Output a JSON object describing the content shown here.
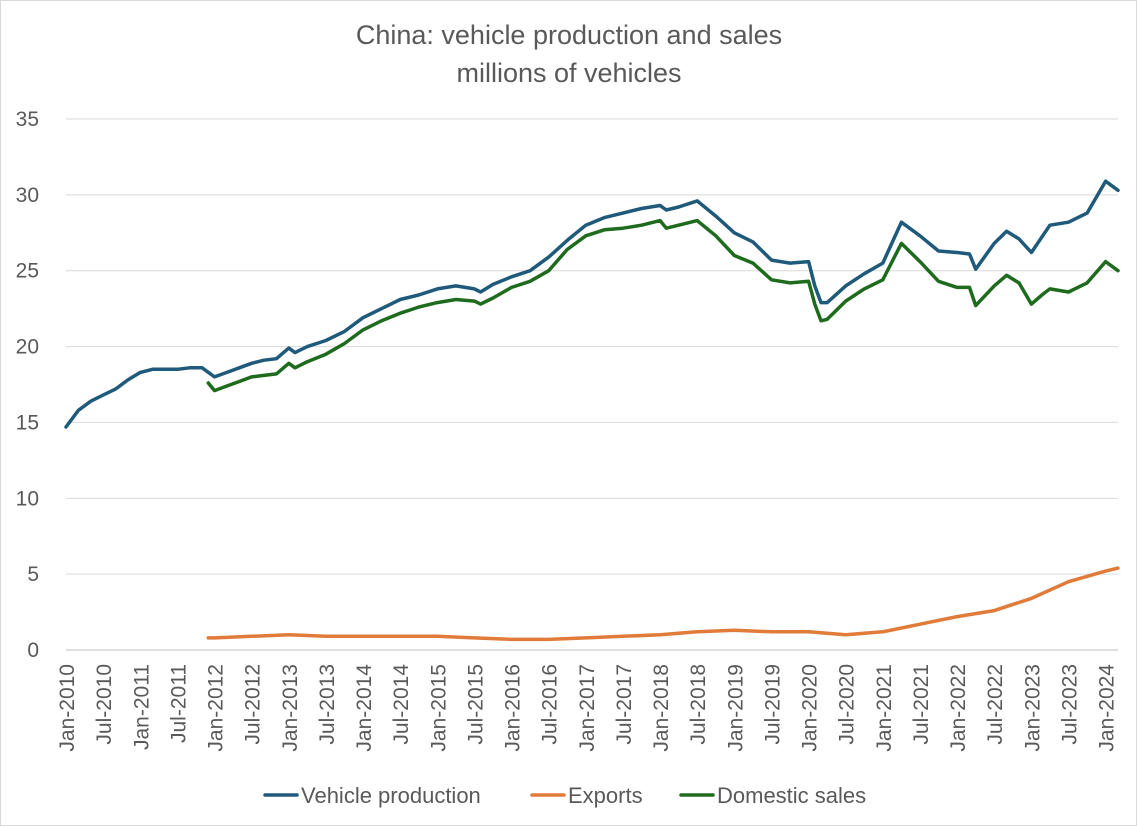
{
  "chart_data": {
    "type": "line",
    "title": "China: vehicle production and sales",
    "subtitle": "millions of vehicles",
    "xlabel": "",
    "ylabel": "",
    "ylim": [
      0,
      35
    ],
    "yticks": [
      0,
      5,
      10,
      15,
      20,
      25,
      30,
      35
    ],
    "x_range": [
      "Jan-2010",
      "Mar-2024"
    ],
    "xtick_labels": [
      "Jan-2010",
      "Jul-2010",
      "Jan-2011",
      "Jul-2011",
      "Jan-2012",
      "Jul-2012",
      "Jan-2013",
      "Jul-2013",
      "Jan-2014",
      "Jul-2014",
      "Jan-2015",
      "Jul-2015",
      "Jan-2016",
      "Jul-2016",
      "Jan-2017",
      "Jul-2017",
      "Jan-2018",
      "Jul-2018",
      "Jan-2019",
      "Jul-2019",
      "Jan-2020",
      "Jul-2020",
      "Jan-2021",
      "Jul-2021",
      "Jan-2022",
      "Jul-2022",
      "Jan-2023",
      "Jul-2023",
      "Jan-2024"
    ],
    "grid": "horizontal",
    "legend_position": "bottom",
    "series": [
      {
        "name": "Vehicle production",
        "color": "#1f5a7a",
        "points": [
          [
            "Jan-2010",
            14.7
          ],
          [
            "Mar-2010",
            15.8
          ],
          [
            "May-2010",
            16.4
          ],
          [
            "Jul-2010",
            16.8
          ],
          [
            "Sep-2010",
            17.2
          ],
          [
            "Nov-2010",
            17.8
          ],
          [
            "Jan-2011",
            18.3
          ],
          [
            "Mar-2011",
            18.5
          ],
          [
            "May-2011",
            18.5
          ],
          [
            "Jul-2011",
            18.5
          ],
          [
            "Sep-2011",
            18.6
          ],
          [
            "Nov-2011",
            18.6
          ],
          [
            "Jan-2012",
            18.0
          ],
          [
            "Mar-2012",
            18.3
          ],
          [
            "May-2012",
            18.6
          ],
          [
            "Jul-2012",
            18.9
          ],
          [
            "Sep-2012",
            19.1
          ],
          [
            "Nov-2012",
            19.2
          ],
          [
            "Jan-2013",
            19.9
          ],
          [
            "Feb-2013",
            19.6
          ],
          [
            "Apr-2013",
            20.0
          ],
          [
            "Jul-2013",
            20.4
          ],
          [
            "Oct-2013",
            21.0
          ],
          [
            "Jan-2014",
            21.9
          ],
          [
            "Apr-2014",
            22.5
          ],
          [
            "Jul-2014",
            23.1
          ],
          [
            "Oct-2014",
            23.4
          ],
          [
            "Jan-2015",
            23.8
          ],
          [
            "Apr-2015",
            24.0
          ],
          [
            "Jul-2015",
            23.8
          ],
          [
            "Aug-2015",
            23.6
          ],
          [
            "Oct-2015",
            24.1
          ],
          [
            "Jan-2016",
            24.6
          ],
          [
            "Apr-2016",
            25.0
          ],
          [
            "Jul-2016",
            25.9
          ],
          [
            "Oct-2016",
            27.0
          ],
          [
            "Jan-2017",
            28.0
          ],
          [
            "Apr-2017",
            28.5
          ],
          [
            "Jul-2017",
            28.8
          ],
          [
            "Oct-2017",
            29.1
          ],
          [
            "Jan-2018",
            29.3
          ],
          [
            "Feb-2018",
            29.0
          ],
          [
            "Apr-2018",
            29.2
          ],
          [
            "Jul-2018",
            29.6
          ],
          [
            "Oct-2018",
            28.6
          ],
          [
            "Jan-2019",
            27.5
          ],
          [
            "Apr-2019",
            26.9
          ],
          [
            "Jul-2019",
            25.7
          ],
          [
            "Oct-2019",
            25.5
          ],
          [
            "Jan-2020",
            25.6
          ],
          [
            "Feb-2020",
            24.0
          ],
          [
            "Mar-2020",
            22.9
          ],
          [
            "Apr-2020",
            22.9
          ],
          [
            "Jul-2020",
            24.0
          ],
          [
            "Oct-2020",
            24.8
          ],
          [
            "Jan-2021",
            25.5
          ],
          [
            "Apr-2021",
            28.2
          ],
          [
            "Jul-2021",
            27.3
          ],
          [
            "Oct-2021",
            26.3
          ],
          [
            "Jan-2022",
            26.2
          ],
          [
            "Mar-2022",
            26.1
          ],
          [
            "Apr-2022",
            25.1
          ],
          [
            "Jul-2022",
            26.8
          ],
          [
            "Sep-2022",
            27.6
          ],
          [
            "Nov-2022",
            27.1
          ],
          [
            "Jan-2023",
            26.2
          ],
          [
            "Mar-2023",
            27.4
          ],
          [
            "Apr-2023",
            28.0
          ],
          [
            "Jul-2023",
            28.2
          ],
          [
            "Oct-2023",
            28.8
          ],
          [
            "Jan-2024",
            30.9
          ],
          [
            "Mar-2024",
            30.3
          ]
        ]
      },
      {
        "name": "Exports",
        "color": "#e07b39",
        "points": [
          [
            "Dec-2011",
            0.8
          ],
          [
            "Jan-2012",
            0.8
          ],
          [
            "Jul-2012",
            0.9
          ],
          [
            "Jan-2013",
            1.0
          ],
          [
            "Jul-2013",
            0.9
          ],
          [
            "Jan-2014",
            0.9
          ],
          [
            "Jul-2014",
            0.9
          ],
          [
            "Jan-2015",
            0.9
          ],
          [
            "Jul-2015",
            0.8
          ],
          [
            "Jan-2016",
            0.7
          ],
          [
            "Jul-2016",
            0.7
          ],
          [
            "Jan-2017",
            0.8
          ],
          [
            "Jul-2017",
            0.9
          ],
          [
            "Jan-2018",
            1.0
          ],
          [
            "Jul-2018",
            1.2
          ],
          [
            "Jan-2019",
            1.3
          ],
          [
            "Jul-2019",
            1.2
          ],
          [
            "Jan-2020",
            1.2
          ],
          [
            "Jul-2020",
            1.0
          ],
          [
            "Jan-2021",
            1.2
          ],
          [
            "Jul-2021",
            1.7
          ],
          [
            "Jan-2022",
            2.2
          ],
          [
            "Jul-2022",
            2.6
          ],
          [
            "Jan-2023",
            3.4
          ],
          [
            "Jul-2023",
            4.5
          ],
          [
            "Jan-2024",
            5.2
          ],
          [
            "Mar-2024",
            5.4
          ]
        ]
      },
      {
        "name": "Domestic sales",
        "color": "#1e6b1e",
        "points": [
          [
            "Dec-2011",
            17.6
          ],
          [
            "Jan-2012",
            17.1
          ],
          [
            "Mar-2012",
            17.4
          ],
          [
            "May-2012",
            17.7
          ],
          [
            "Jul-2012",
            18.0
          ],
          [
            "Sep-2012",
            18.1
          ],
          [
            "Nov-2012",
            18.2
          ],
          [
            "Jan-2013",
            18.9
          ],
          [
            "Feb-2013",
            18.6
          ],
          [
            "Apr-2013",
            19.0
          ],
          [
            "Jul-2013",
            19.5
          ],
          [
            "Oct-2013",
            20.2
          ],
          [
            "Jan-2014",
            21.1
          ],
          [
            "Apr-2014",
            21.7
          ],
          [
            "Jul-2014",
            22.2
          ],
          [
            "Oct-2014",
            22.6
          ],
          [
            "Jan-2015",
            22.9
          ],
          [
            "Apr-2015",
            23.1
          ],
          [
            "Jul-2015",
            23.0
          ],
          [
            "Aug-2015",
            22.8
          ],
          [
            "Oct-2015",
            23.2
          ],
          [
            "Jan-2016",
            23.9
          ],
          [
            "Apr-2016",
            24.3
          ],
          [
            "Jul-2016",
            25.0
          ],
          [
            "Oct-2016",
            26.4
          ],
          [
            "Jan-2017",
            27.3
          ],
          [
            "Apr-2017",
            27.7
          ],
          [
            "Jul-2017",
            27.8
          ],
          [
            "Oct-2017",
            28.0
          ],
          [
            "Jan-2018",
            28.3
          ],
          [
            "Feb-2018",
            27.8
          ],
          [
            "Apr-2018",
            28.0
          ],
          [
            "Jul-2018",
            28.3
          ],
          [
            "Oct-2018",
            27.3
          ],
          [
            "Jan-2019",
            26.0
          ],
          [
            "Apr-2019",
            25.5
          ],
          [
            "Jul-2019",
            24.4
          ],
          [
            "Oct-2019",
            24.2
          ],
          [
            "Jan-2020",
            24.3
          ],
          [
            "Feb-2020",
            22.8
          ],
          [
            "Mar-2020",
            21.7
          ],
          [
            "Apr-2020",
            21.8
          ],
          [
            "Jul-2020",
            23.0
          ],
          [
            "Oct-2020",
            23.8
          ],
          [
            "Jan-2021",
            24.4
          ],
          [
            "Apr-2021",
            26.8
          ],
          [
            "Jul-2021",
            25.6
          ],
          [
            "Oct-2021",
            24.3
          ],
          [
            "Jan-2022",
            23.9
          ],
          [
            "Mar-2022",
            23.9
          ],
          [
            "Apr-2022",
            22.7
          ],
          [
            "Jul-2022",
            24.0
          ],
          [
            "Sep-2022",
            24.7
          ],
          [
            "Nov-2022",
            24.2
          ],
          [
            "Jan-2023",
            22.8
          ],
          [
            "Mar-2023",
            23.5
          ],
          [
            "Apr-2023",
            23.8
          ],
          [
            "Jul-2023",
            23.6
          ],
          [
            "Oct-2023",
            24.2
          ],
          [
            "Jan-2024",
            25.6
          ],
          [
            "Mar-2024",
            25.0
          ]
        ]
      }
    ]
  }
}
